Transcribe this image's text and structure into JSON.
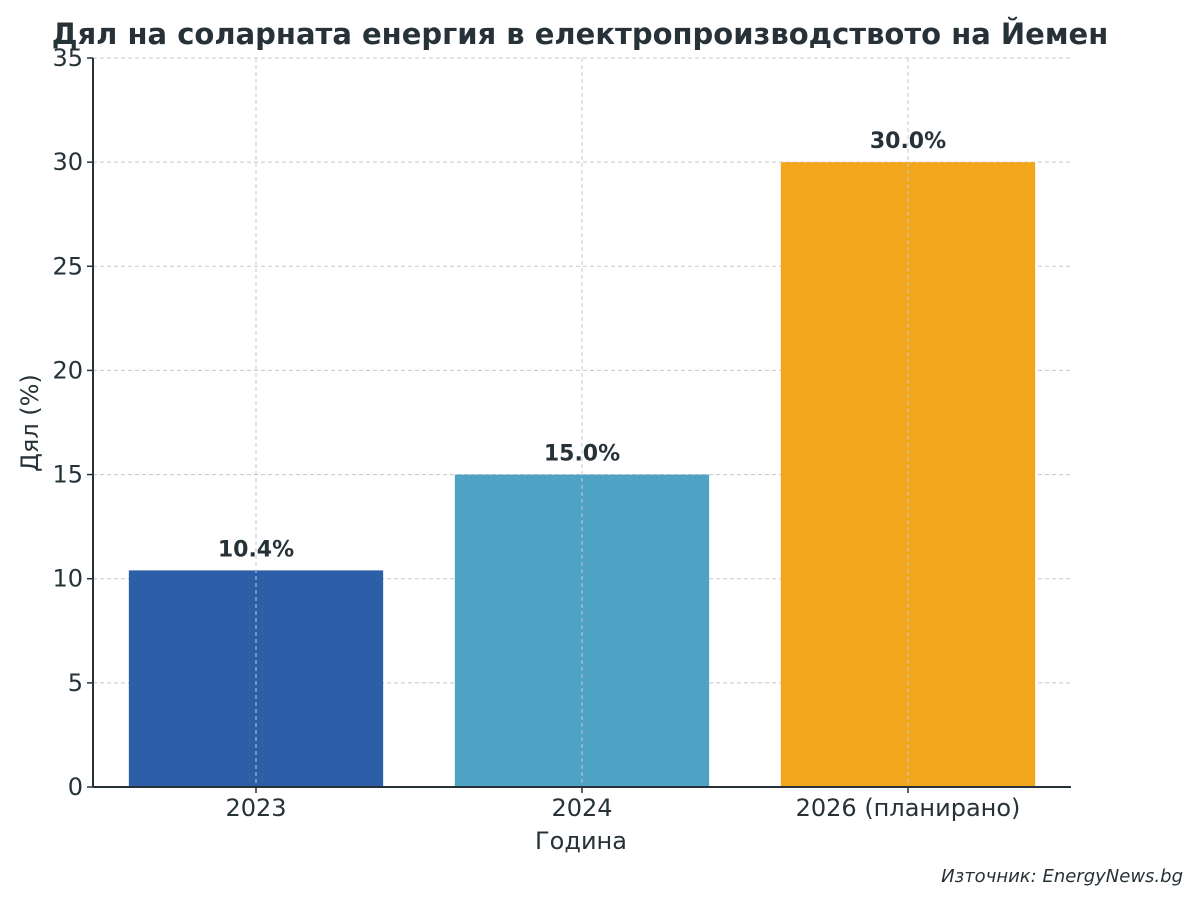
{
  "chart_data": {
    "type": "bar",
    "title": "Дял на соларната енергия в електропроизводството на Йемен",
    "xlabel": "Година",
    "ylabel": "Дял (%)",
    "categories": [
      "2023",
      "2024",
      "2026 (планирано)"
    ],
    "values": [
      10.4,
      15.0,
      30.0
    ],
    "data_labels": [
      "10.4%",
      "15.0%",
      "30.0%"
    ],
    "colors": [
      "#2d5ea8",
      "#4ea2c3",
      "#f2a61b"
    ],
    "ylim": [
      0,
      35
    ],
    "yticks": [
      0,
      5,
      10,
      15,
      20,
      25,
      30,
      35
    ],
    "grid": true
  },
  "source": "Източник: EnergyNews.bg"
}
